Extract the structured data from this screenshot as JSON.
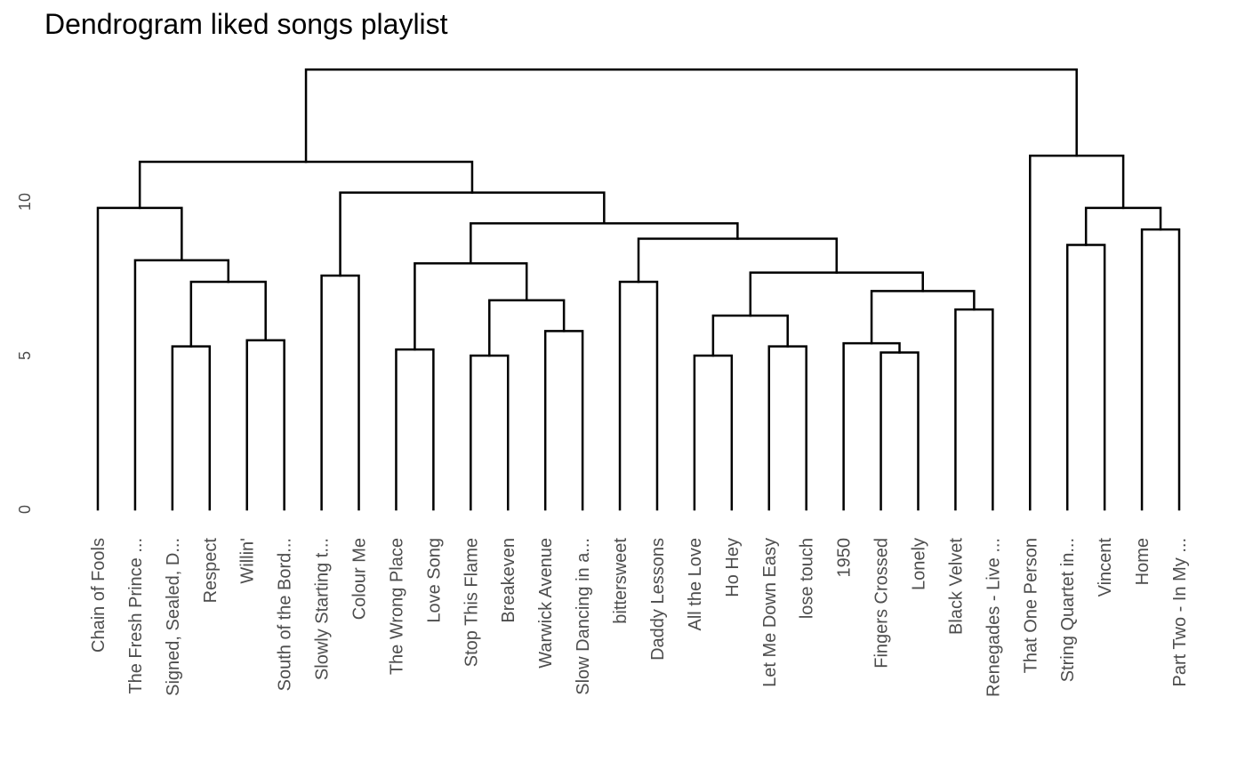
{
  "chart_data": {
    "type": "dendrogram",
    "title": "Dendrogram liked songs playlist",
    "ylim": [
      0,
      14.5
    ],
    "yticks": [
      0,
      5,
      10
    ],
    "grid": false,
    "leaves": [
      "Chain of Fools",
      "The Fresh Prince ...",
      "Signed, Sealed, D...",
      "Respect",
      "Willin'",
      "South of the Bord...",
      "Slowly Starting t...",
      "Colour Me",
      "The Wrong Place",
      "Love Song",
      "Stop This Flame",
      "Breakeven",
      "Warwick Avenue",
      "Slow Dancing in a...",
      "bittersweet",
      "Daddy Lessons",
      "All the Love",
      "Ho Hey",
      "Let Me Down Easy",
      "lose touch",
      "1950",
      "Fingers Crossed",
      "Lonely",
      "Black Velvet",
      "Renegades - Live ...",
      "That One Person",
      "String Quartet in...",
      "Vincent",
      "Home",
      "Part Two - In My ..."
    ],
    "merges": [
      {
        "id": "m1",
        "left": 2,
        "right": 3,
        "height": 5.3
      },
      {
        "id": "m2",
        "left": 4,
        "right": 5,
        "height": 5.5
      },
      {
        "id": "m3",
        "left": "m1",
        "right": "m2",
        "height": 7.4
      },
      {
        "id": "m4",
        "left": 1,
        "right": "m3",
        "height": 8.1
      },
      {
        "id": "m5",
        "left": 0,
        "right": "m4",
        "height": 9.8
      },
      {
        "id": "m6",
        "left": 6,
        "right": 7,
        "height": 7.6
      },
      {
        "id": "m7",
        "left": 8,
        "right": 9,
        "height": 5.2
      },
      {
        "id": "m8",
        "left": 10,
        "right": 11,
        "height": 5.0
      },
      {
        "id": "m9",
        "left": 12,
        "right": 13,
        "height": 5.8
      },
      {
        "id": "m10",
        "left": "m8",
        "right": "m9",
        "height": 6.8
      },
      {
        "id": "m11",
        "left": "m7",
        "right": "m10",
        "height": 8.0
      },
      {
        "id": "m12",
        "left": 14,
        "right": 15,
        "height": 7.4
      },
      {
        "id": "m13",
        "left": 16,
        "right": 17,
        "height": 5.0
      },
      {
        "id": "m14",
        "left": 18,
        "right": 19,
        "height": 5.3
      },
      {
        "id": "m15",
        "left": "m13",
        "right": "m14",
        "height": 6.3
      },
      {
        "id": "m16",
        "left": 21,
        "right": 22,
        "height": 5.1
      },
      {
        "id": "m17",
        "left": 20,
        "right": "m16",
        "height": 5.4
      },
      {
        "id": "m18",
        "left": 23,
        "right": 24,
        "height": 6.5
      },
      {
        "id": "m19",
        "left": "m17",
        "right": "m18",
        "height": 7.1
      },
      {
        "id": "m20",
        "left": "m15",
        "right": "m19",
        "height": 7.7
      },
      {
        "id": "m21",
        "left": "m12",
        "right": "m20",
        "height": 8.8
      },
      {
        "id": "m22",
        "left": "m11",
        "right": "m21",
        "height": 9.3
      },
      {
        "id": "m23",
        "left": "m6",
        "right": "m22",
        "height": 10.3
      },
      {
        "id": "m24",
        "left": "m5",
        "right": "m23",
        "height": 11.3
      },
      {
        "id": "m25",
        "left": 26,
        "right": 27,
        "height": 8.6
      },
      {
        "id": "m26",
        "left": 28,
        "right": 29,
        "height": 9.1
      },
      {
        "id": "m27",
        "left": "m25",
        "right": "m26",
        "height": 9.8
      },
      {
        "id": "m28",
        "left": 25,
        "right": "m27",
        "height": 11.5
      },
      {
        "id": "m29",
        "left": "m24",
        "right": "m28",
        "height": 14.3
      }
    ]
  }
}
